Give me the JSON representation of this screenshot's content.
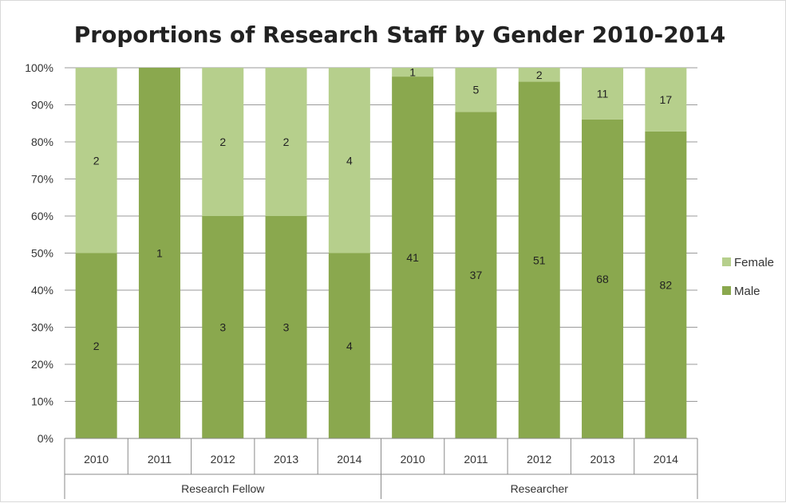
{
  "chart_data": {
    "type": "bar",
    "stacked": "percent",
    "title": "Proportions of Research Staff by Gender 2010-2014",
    "groups": [
      {
        "name": "Research Fellow",
        "categories": [
          "2010",
          "2011",
          "2012",
          "2013",
          "2014"
        ]
      },
      {
        "name": "Researcher",
        "categories": [
          "2010",
          "2011",
          "2012",
          "2013",
          "2014"
        ]
      }
    ],
    "categories": [
      "2010",
      "2011",
      "2012",
      "2013",
      "2014",
      "2010",
      "2011",
      "2012",
      "2013",
      "2014"
    ],
    "series": [
      {
        "name": "Male",
        "color": "#8aa84e",
        "values": [
          2,
          1,
          3,
          3,
          4,
          41,
          37,
          51,
          68,
          82
        ]
      },
      {
        "name": "Female",
        "color": "#b6cf8c",
        "values": [
          2,
          0,
          2,
          2,
          4,
          1,
          5,
          2,
          11,
          17
        ]
      }
    ],
    "yticks": [
      "0%",
      "10%",
      "20%",
      "30%",
      "40%",
      "50%",
      "60%",
      "70%",
      "80%",
      "90%",
      "100%"
    ],
    "ylim": [
      0,
      100
    ],
    "grid": true,
    "legend": {
      "position": "right",
      "entries": [
        "Female",
        "Male"
      ]
    }
  }
}
